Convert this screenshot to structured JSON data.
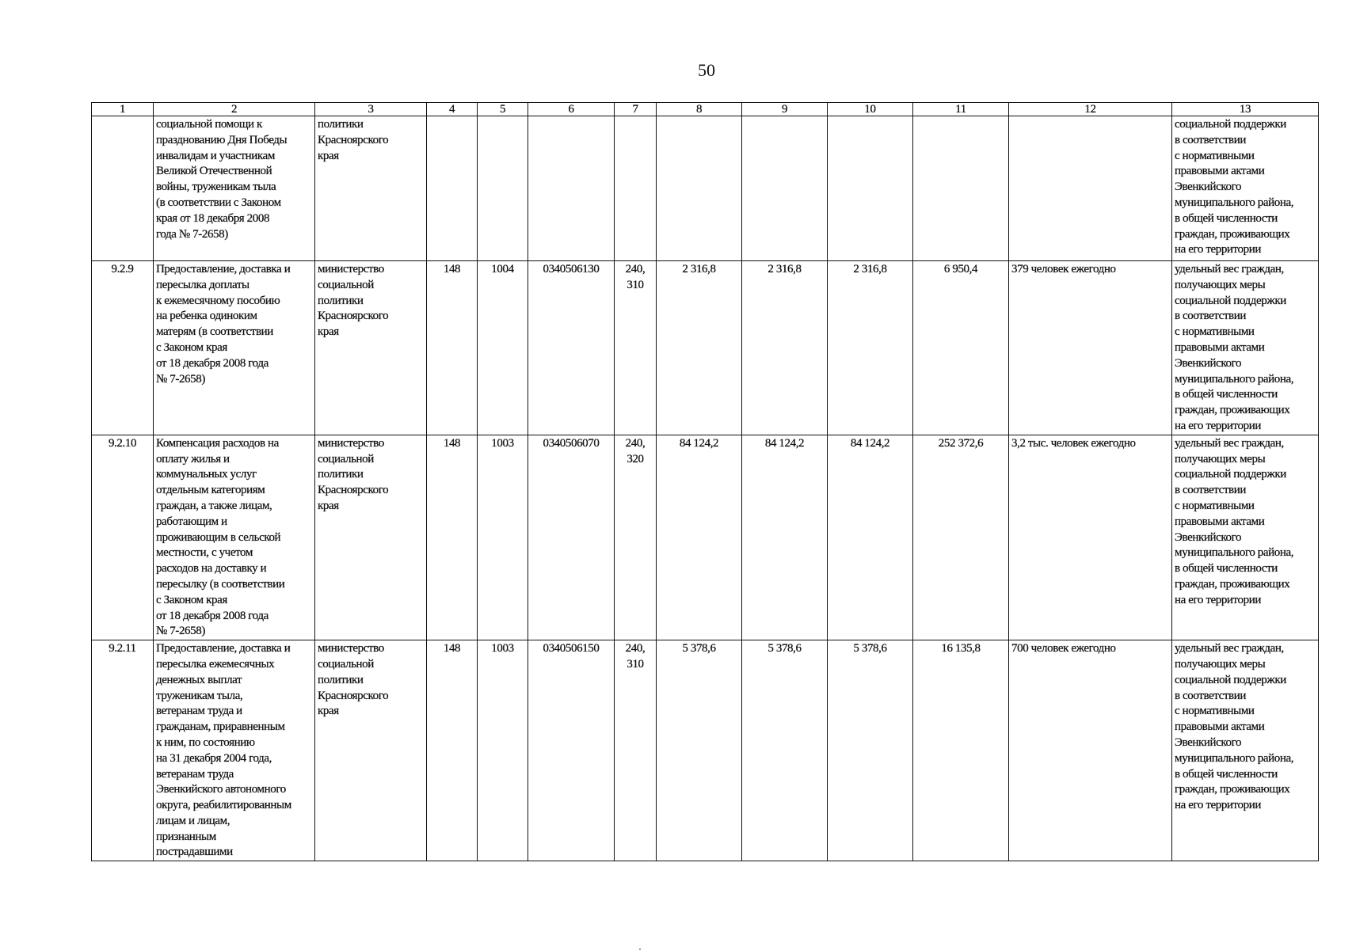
{
  "page_number": "50",
  "table": {
    "header": [
      "1",
      "2",
      "3",
      "4",
      "5",
      "6",
      "7",
      "8",
      "9",
      "10",
      "11",
      "12",
      "13"
    ],
    "rows": [
      {
        "cells": [
          "",
          "социальной помощи к\nпразднованию Дня Победы\nинвалидам и участникам\nВеликой Отечественной\nвойны, труженикам тыла\n(в соответствии с Законом\nкрая от 18 декабря 2008\nгода № 7-2658)",
          "политики\nКрасноярского\nкрая",
          "",
          "",
          "",
          "",
          "",
          "",
          "",
          "",
          "",
          "социальной поддержки\nв соответствии\nс нормативными\nправовыми актами\nЭвенкийского\nмуниципального района,\nв общей численности\nграждан, проживающих\nна его территории"
        ]
      },
      {
        "cells": [
          "9.2.9",
          "Предоставление, доставка и\nпересылка доплаты\nк ежемесячному пособию\nна ребенка одиноким\nматерям (в соответствии\nс Законом края\nот 18 декабря 2008 года\n№ 7-2658)",
          "министерство\nсоциальной\nполитики\nКрасноярского\nкрая",
          "148",
          "1004",
          "0340506130",
          "240,\n310",
          "2 316,8",
          "2 316,8",
          "2 316,8",
          "6 950,4",
          "379 человек ежегодно",
          "удельный вес граждан,\nполучающих меры\nсоциальной поддержки\nв соответствии\nс нормативными\nправовыми актами\nЭвенкийского\nмуниципального района,\nв общей численности\nграждан, проживающих\nна его территории"
        ]
      },
      {
        "cells": [
          "9.2.10",
          "Компенсация расходов на\nоплату жилья и\nкоммунальных услуг\nотдельным категориям\nграждан, а также лицам,\nработающим и\nпроживающим в сельской\nместности, с учетом\nрасходов на доставку и\nпересылку (в соответствии\nс Законом края\nот 18 декабря 2008 года\n№ 7-2658)",
          "министерство\nсоциальной\nполитики\nКрасноярского\nкрая",
          "148",
          "1003",
          "0340506070",
          "240,\n320",
          "84 124,2",
          "84 124,2",
          "84 124,2",
          "252 372,6",
          "3,2 тыс. человек ежегодно",
          "удельный вес граждан,\nполучающих меры\nсоциальной поддержки\nв соответствии\nс нормативными\nправовыми актами\nЭвенкийского\nмуниципального района,\nв общей численности\nграждан, проживающих\nна его территории"
        ]
      },
      {
        "cells": [
          "9.2.11",
          "Предоставление, доставка и\nпересылка ежемесячных\nденежных выплат\nтруженикам тыла,\nветеранам труда и\nгражданам, приравненным\nк ним, по состоянию\nна 31 декабря 2004 года,\nветеранам труда\nЭвенкийского автономного\nокруга, реабилитированным\nлицам и лицам,\nпризнанным\nпострадавшими",
          "министерство\nсоциальной\nполитики\nКрасноярского\nкрая",
          "148",
          "1003",
          "0340506150",
          "240,\n310",
          "5 378,6",
          "5 378,6",
          "5 378,6",
          "16 135,8",
          "700 человек ежегодно",
          "удельный вес граждан,\nполучающих меры\nсоциальной поддержки\nв соответствии\nс нормативными\nправовыми актами\nЭвенкийского\nмуниципального района,\nв общей численности\nграждан, проживающих\nна его территории"
        ]
      }
    ]
  }
}
